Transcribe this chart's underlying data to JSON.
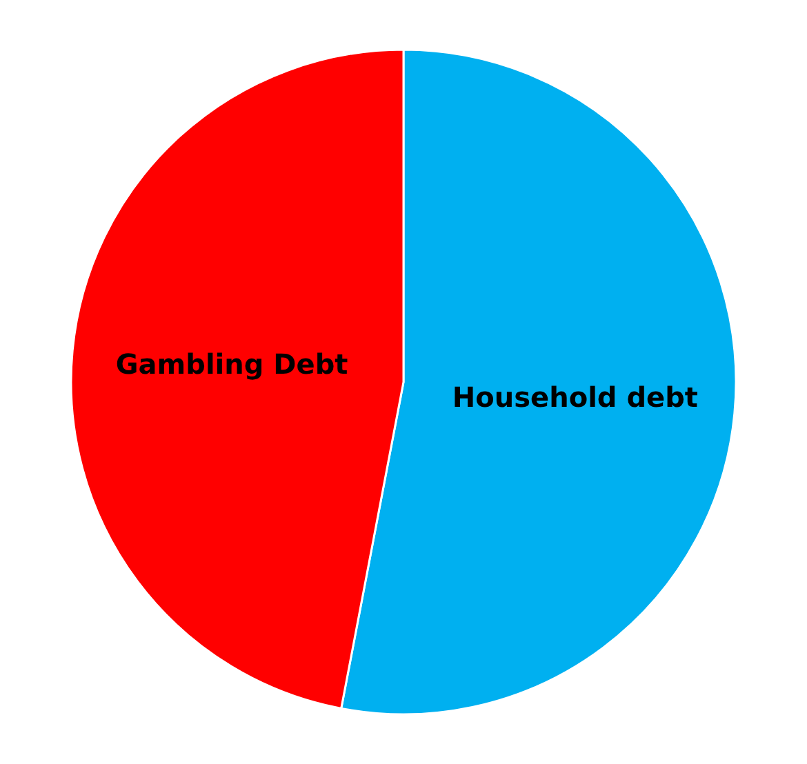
{
  "chart_data": {
    "type": "pie",
    "categories": [
      "Household debt",
      "Gambling Debt"
    ],
    "values": [
      53,
      47
    ],
    "colors": [
      "#00b0f0",
      "#ff0000"
    ]
  }
}
